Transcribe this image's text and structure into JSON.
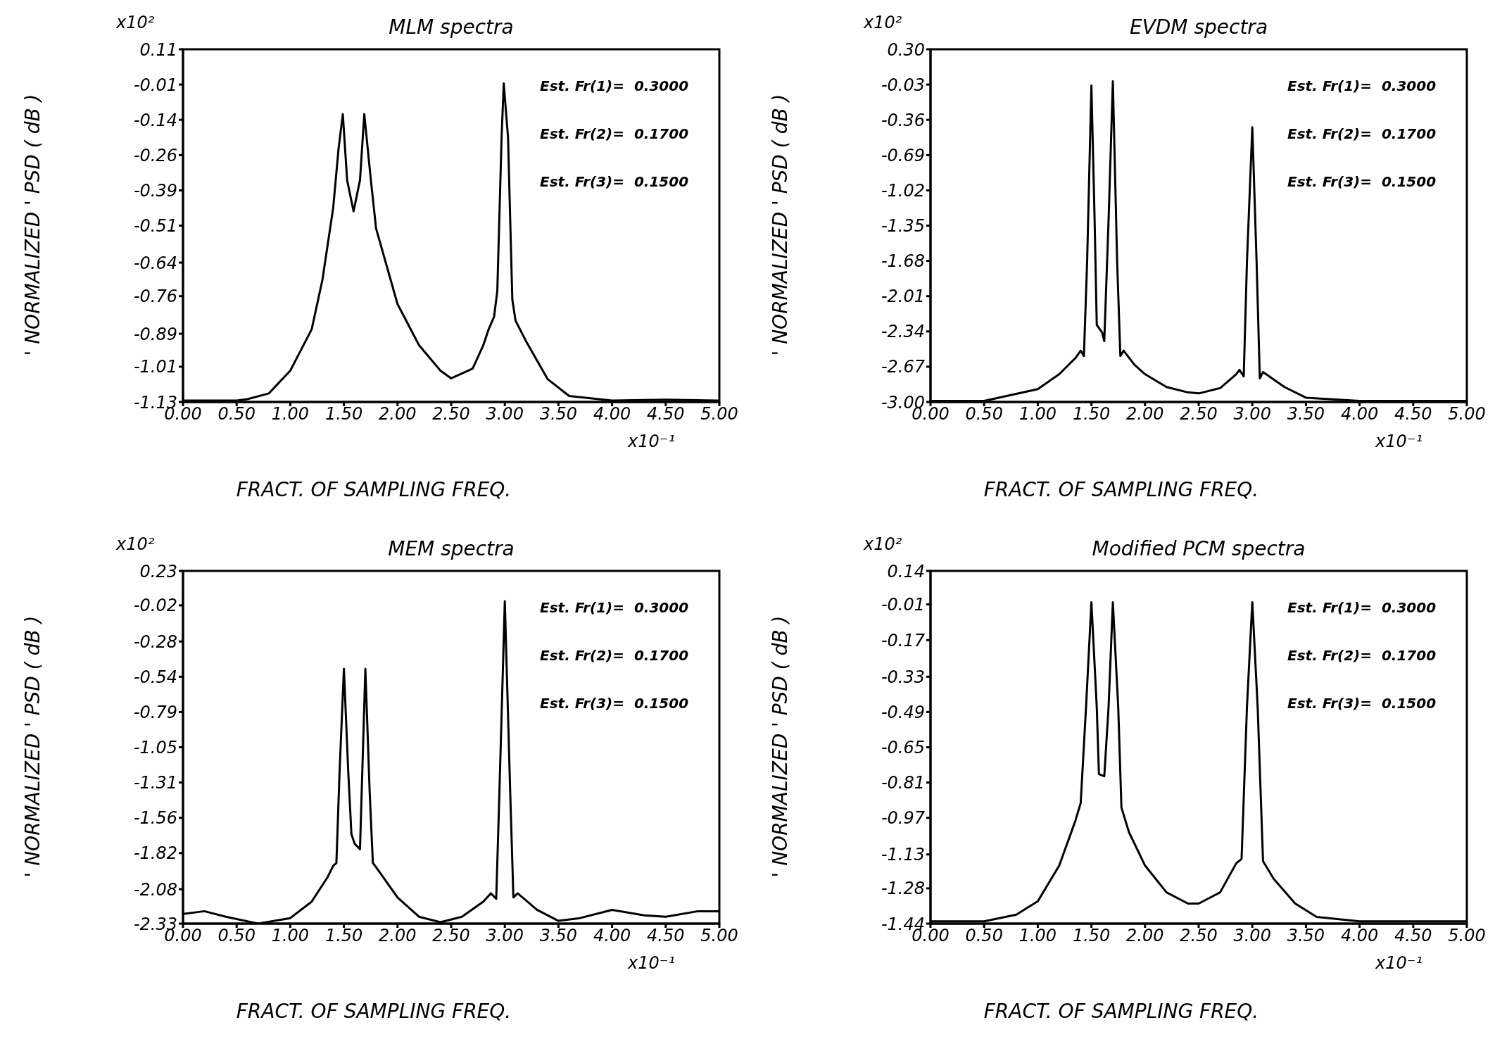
{
  "chart_data": [
    {
      "type": "line",
      "title": "MLM spectra",
      "xlabel": "FRACT. OF SAMPLING FREQ.",
      "ylabel": "' NORMALIZED ' PSD ( dB )",
      "color": "#000000",
      "marker": "none",
      "annotations": [
        "x10²",
        "x10⁻¹",
        "Est. Fr(1)=  0.3000",
        "Est. Fr(2)=  0.1700",
        "Est. Fr(3)=  0.1500"
      ],
      "xlim": [
        0,
        5
      ],
      "xticks": [
        {
          "value": 0,
          "label": "0.00"
        },
        {
          "value": 0.5,
          "label": "0.50"
        },
        {
          "value": 1,
          "label": "1.00"
        },
        {
          "value": 1.5,
          "label": "1.50"
        },
        {
          "value": 2,
          "label": "2.00"
        },
        {
          "value": 2.5,
          "label": "2.50"
        },
        {
          "value": 3,
          "label": "3.00"
        },
        {
          "value": 3.5,
          "label": "3.50"
        },
        {
          "value": 4,
          "label": "4.00"
        },
        {
          "value": 4.5,
          "label": "4.50"
        },
        {
          "value": 5,
          "label": "5.00"
        }
      ],
      "ylim": [
        -1.13,
        0.11
      ],
      "yticks": [
        {
          "value": 0.11,
          "label": "0.11"
        },
        {
          "value": -0.014,
          "label": "-0.01"
        },
        {
          "value": -0.138,
          "label": "-0.14"
        },
        {
          "value": -0.262,
          "label": "-0.26"
        },
        {
          "value": -0.386,
          "label": "-0.39"
        },
        {
          "value": -0.51,
          "label": "-0.51"
        },
        {
          "value": -0.64,
          "label": "-0.64"
        },
        {
          "value": -0.758,
          "label": "-0.76"
        },
        {
          "value": -0.89,
          "label": "-0.89"
        },
        {
          "value": -1.006,
          "label": "-1.01"
        },
        {
          "value": -1.13,
          "label": "-1.13"
        }
      ],
      "x": [
        0,
        0.5,
        0.6,
        0.8,
        1.0,
        1.2,
        1.3,
        1.4,
        1.45,
        1.49,
        1.53,
        1.59,
        1.65,
        1.69,
        1.75,
        1.8,
        2.0,
        2.2,
        2.4,
        2.5,
        2.7,
        2.8,
        2.85,
        2.9,
        2.93,
        2.97,
        2.99,
        3.03,
        3.07,
        3.1,
        3.2,
        3.4,
        3.6,
        4.0,
        4.5,
        5.0
      ],
      "values": [
        -1.125,
        -1.125,
        -1.12,
        -1.1,
        -1.02,
        -0.874,
        -0.7,
        -0.448,
        -0.24,
        -0.118,
        -0.35,
        -0.46,
        -0.35,
        -0.118,
        -0.345,
        -0.52,
        -0.786,
        -0.93,
        -1.02,
        -1.047,
        -1.013,
        -0.93,
        -0.874,
        -0.83,
        -0.74,
        -0.2,
        -0.01,
        -0.2,
        -0.77,
        -0.844,
        -0.918,
        -1.05,
        -1.109,
        -1.125,
        -1.122,
        -1.125
      ]
    },
    {
      "type": "line",
      "title": "EVDM spectra",
      "xlabel": "FRACT. OF SAMPLING FREQ.",
      "ylabel": "' NORMALIZED ' PSD ( dB )",
      "color": "#000000",
      "marker": "none",
      "annotations": [
        "x10²",
        "x10⁻¹",
        "Est. Fr(1)=  0.3000",
        "Est. Fr(2)=  0.1700",
        "Est. Fr(3)=  0.1500"
      ],
      "xlim": [
        0,
        5
      ],
      "xticks": [
        {
          "value": 0,
          "label": "0.00"
        },
        {
          "value": 0.5,
          "label": "0.50"
        },
        {
          "value": 1,
          "label": "1.00"
        },
        {
          "value": 1.5,
          "label": "1.50"
        },
        {
          "value": 2,
          "label": "2.00"
        },
        {
          "value": 2.5,
          "label": "2.50"
        },
        {
          "value": 3,
          "label": "3.00"
        },
        {
          "value": 3.5,
          "label": "3.50"
        },
        {
          "value": 4,
          "label": "4.00"
        },
        {
          "value": 4.5,
          "label": "4.50"
        },
        {
          "value": 5,
          "label": "5.00"
        }
      ],
      "ylim": [
        -3.0,
        0.3
      ],
      "yticks": [
        {
          "value": 0.3,
          "label": "0.30"
        },
        {
          "value": -0.03,
          "label": "-0.03"
        },
        {
          "value": -0.36,
          "label": "-0.36"
        },
        {
          "value": -0.69,
          "label": "-0.69"
        },
        {
          "value": -1.02,
          "label": "-1.02"
        },
        {
          "value": -1.35,
          "label": "-1.35"
        },
        {
          "value": -1.68,
          "label": "-1.68"
        },
        {
          "value": -2.01,
          "label": "-2.01"
        },
        {
          "value": -2.34,
          "label": "-2.34"
        },
        {
          "value": -2.67,
          "label": "-2.67"
        },
        {
          "value": -3.0,
          "label": "-3.00"
        }
      ],
      "x": [
        0,
        0.5,
        1.0,
        1.2,
        1.35,
        1.4,
        1.43,
        1.46,
        1.5,
        1.53,
        1.55,
        1.6,
        1.62,
        1.66,
        1.7,
        1.74,
        1.77,
        1.8,
        1.9,
        2.0,
        2.2,
        2.4,
        2.5,
        2.7,
        2.85,
        2.88,
        2.92,
        2.95,
        3.0,
        3.04,
        3.07,
        3.1,
        3.3,
        3.5,
        4.0,
        5.0
      ],
      "values": [
        -2.99,
        -2.99,
        -2.88,
        -2.74,
        -2.59,
        -2.52,
        -2.57,
        -1.69,
        -0.04,
        -1.3,
        -2.28,
        -2.35,
        -2.43,
        -1.3,
        0.0,
        -1.69,
        -2.57,
        -2.52,
        -2.65,
        -2.74,
        -2.86,
        -2.91,
        -2.92,
        -2.87,
        -2.74,
        -2.7,
        -2.76,
        -1.69,
        -0.43,
        -1.69,
        -2.78,
        -2.72,
        -2.86,
        -2.96,
        -2.99,
        -2.99
      ]
    },
    {
      "type": "line",
      "title": "MEM spectra",
      "xlabel": "FRACT. OF SAMPLING FREQ.",
      "ylabel": "' NORMALIZED ' PSD ( dB )",
      "color": "#000000",
      "marker": "none",
      "annotations": [
        "x10²",
        "x10⁻¹",
        "Est. Fr(1)=  0.3000",
        "Est. Fr(2)=  0.1700",
        "Est. Fr(3)=  0.1500"
      ],
      "xlim": [
        0,
        5
      ],
      "xticks": [
        {
          "value": 0,
          "label": "0.00"
        },
        {
          "value": 0.5,
          "label": "0.50"
        },
        {
          "value": 1,
          "label": "1.00"
        },
        {
          "value": 1.5,
          "label": "1.50"
        },
        {
          "value": 2,
          "label": "2.00"
        },
        {
          "value": 2.5,
          "label": "2.50"
        },
        {
          "value": 3,
          "label": "3.00"
        },
        {
          "value": 3.5,
          "label": "3.50"
        },
        {
          "value": 4,
          "label": "4.00"
        },
        {
          "value": 4.5,
          "label": "4.50"
        },
        {
          "value": 5,
          "label": "5.00"
        }
      ],
      "ylim": [
        -2.33,
        0.23
      ],
      "yticks": [
        {
          "value": 0.23,
          "label": "0.23"
        },
        {
          "value": -0.02,
          "label": "-0.02"
        },
        {
          "value": -0.282,
          "label": "-0.28"
        },
        {
          "value": -0.538,
          "label": "-0.54"
        },
        {
          "value": -0.794,
          "label": "-0.79"
        },
        {
          "value": -1.05,
          "label": "-1.05"
        },
        {
          "value": -1.306,
          "label": "-1.31"
        },
        {
          "value": -1.562,
          "label": "-1.56"
        },
        {
          "value": -1.818,
          "label": "-1.82"
        },
        {
          "value": -2.08,
          "label": "-2.08"
        },
        {
          "value": -2.33,
          "label": "-2.33"
        }
      ],
      "x": [
        0,
        0.2,
        0.4,
        0.7,
        1.0,
        1.2,
        1.35,
        1.4,
        1.43,
        1.46,
        1.5,
        1.54,
        1.57,
        1.6,
        1.65,
        1.7,
        1.74,
        1.77,
        1.8,
        2.0,
        2.2,
        2.4,
        2.6,
        2.8,
        2.87,
        2.92,
        2.95,
        3.0,
        3.05,
        3.08,
        3.12,
        3.3,
        3.5,
        3.7,
        4.0,
        4.3,
        4.5,
        4.8,
        5.0
      ],
      "values": [
        -2.26,
        -2.24,
        -2.28,
        -2.33,
        -2.29,
        -2.17,
        -1.99,
        -1.91,
        -1.89,
        -1.22,
        -0.48,
        -1.22,
        -1.68,
        -1.75,
        -1.79,
        -0.48,
        -1.37,
        -1.89,
        -1.92,
        -2.14,
        -2.28,
        -2.32,
        -2.28,
        -2.17,
        -2.11,
        -2.15,
        -1.37,
        0.01,
        -1.37,
        -2.14,
        -2.11,
        -2.23,
        -2.31,
        -2.29,
        -2.23,
        -2.27,
        -2.28,
        -2.24,
        -2.24
      ]
    },
    {
      "type": "line",
      "title": "Modified PCM spectra",
      "xlabel": "FRACT. OF SAMPLING FREQ.",
      "ylabel": "' NORMALIZED ' PSD ( dB )",
      "color": "#000000",
      "marker": "none",
      "annotations": [
        "x10²",
        "x10⁻¹",
        "Est. Fr(1)=  0.3000",
        "Est. Fr(2)=  0.1700",
        "Est. Fr(3)=  0.1500"
      ],
      "xlim": [
        0,
        5
      ],
      "xticks": [
        {
          "value": 0,
          "label": "0.00"
        },
        {
          "value": 0.5,
          "label": "0.50"
        },
        {
          "value": 1,
          "label": "1.00"
        },
        {
          "value": 1.5,
          "label": "1.50"
        },
        {
          "value": 2,
          "label": "2.00"
        },
        {
          "value": 2.5,
          "label": "2.50"
        },
        {
          "value": 3,
          "label": "3.00"
        },
        {
          "value": 3.5,
          "label": "3.50"
        },
        {
          "value": 4,
          "label": "4.00"
        },
        {
          "value": 4.5,
          "label": "4.50"
        },
        {
          "value": 5,
          "label": "5.00"
        }
      ],
      "ylim": [
        -1.44,
        0.14
      ],
      "yticks": [
        {
          "value": 0.14,
          "label": "0.14"
        },
        {
          "value": -0.01,
          "label": "-0.01"
        },
        {
          "value": -0.17,
          "label": "-0.17"
        },
        {
          "value": -0.334,
          "label": "-0.33"
        },
        {
          "value": -0.492,
          "label": "-0.49"
        },
        {
          "value": -0.65,
          "label": "-0.65"
        },
        {
          "value": -0.808,
          "label": "-0.81"
        },
        {
          "value": -0.966,
          "label": "-0.97"
        },
        {
          "value": -1.13,
          "label": "-1.13"
        },
        {
          "value": -1.282,
          "label": "-1.28"
        },
        {
          "value": -1.44,
          "label": "-1.44"
        }
      ],
      "x": [
        0,
        0.5,
        0.8,
        1.0,
        1.2,
        1.35,
        1.4,
        1.45,
        1.5,
        1.55,
        1.57,
        1.62,
        1.66,
        1.7,
        1.75,
        1.78,
        1.85,
        2.0,
        2.2,
        2.4,
        2.5,
        2.7,
        2.85,
        2.9,
        2.95,
        3.0,
        3.05,
        3.1,
        3.2,
        3.4,
        3.6,
        4.0,
        5.0
      ],
      "values": [
        -1.43,
        -1.43,
        -1.4,
        -1.34,
        -1.18,
        -0.98,
        -0.9,
        -0.47,
        0.0,
        -0.47,
        -0.77,
        -0.78,
        -0.47,
        0.0,
        -0.47,
        -0.92,
        -1.03,
        -1.18,
        -1.3,
        -1.35,
        -1.35,
        -1.3,
        -1.17,
        -1.15,
        -0.47,
        0.0,
        -0.47,
        -1.16,
        -1.24,
        -1.35,
        -1.41,
        -1.43,
        -1.43
      ]
    }
  ]
}
